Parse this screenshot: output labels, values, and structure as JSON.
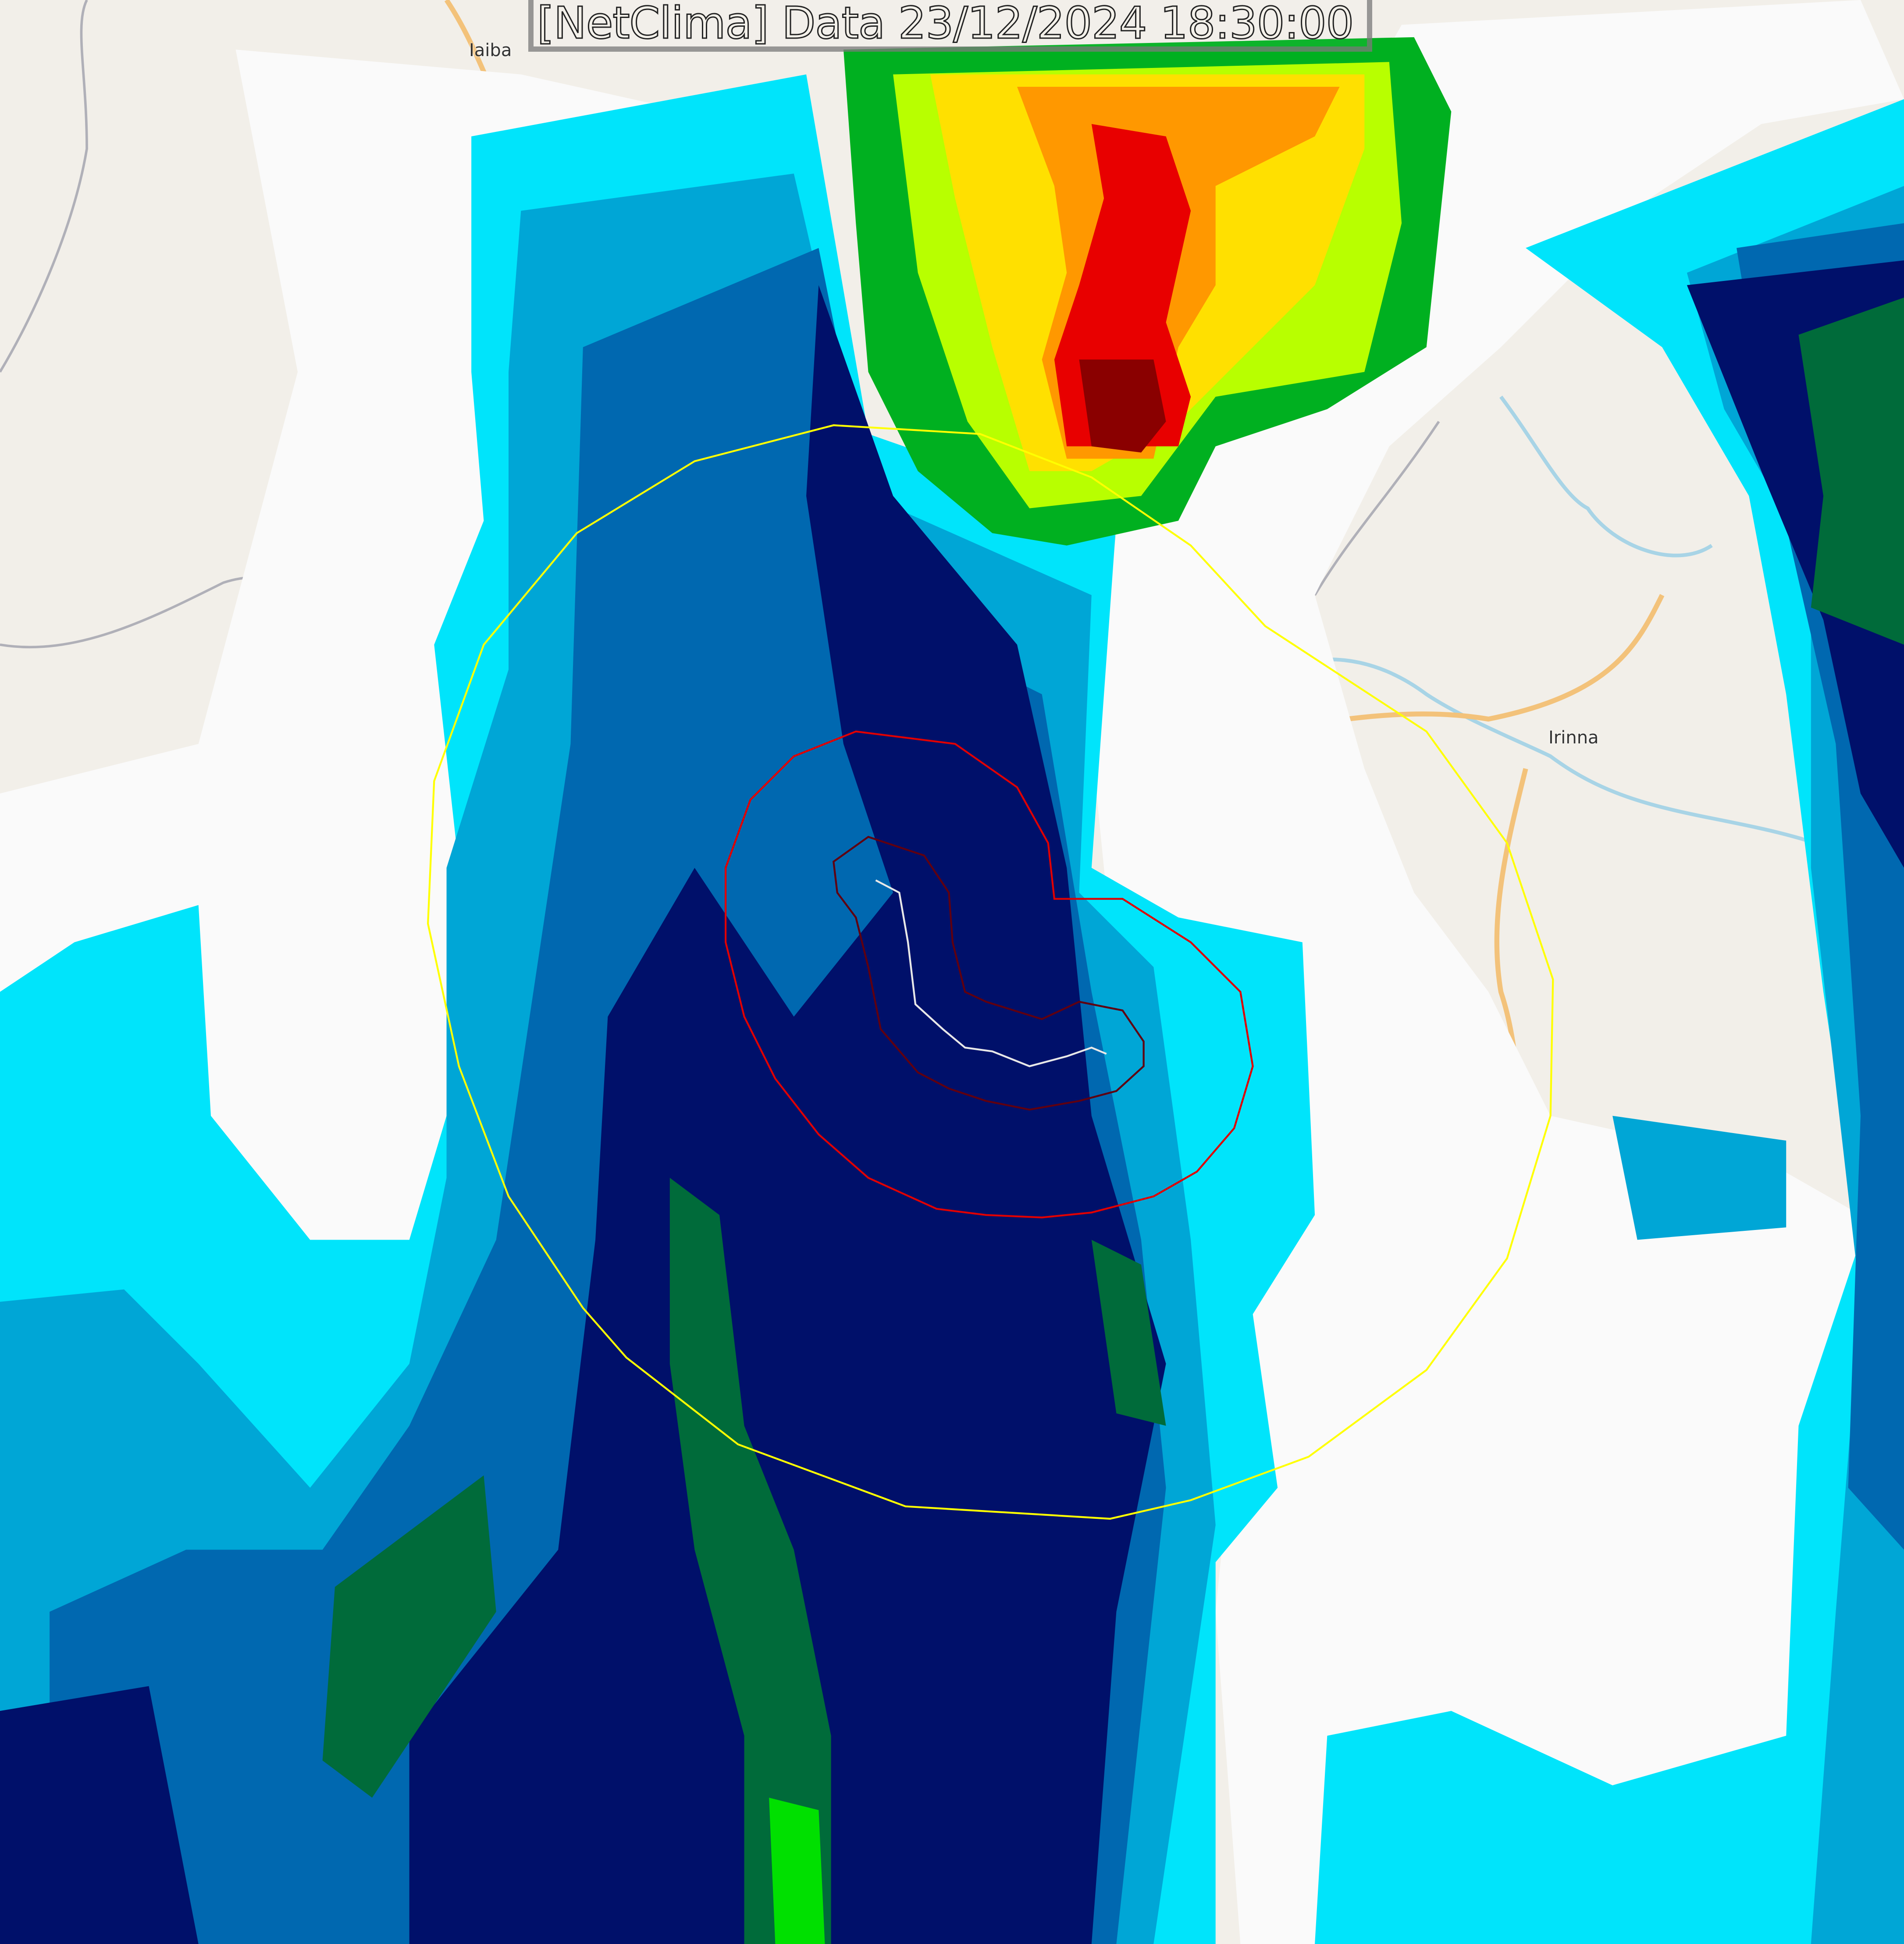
{
  "header": {
    "title": "[NetClima] Data 23/12/2024 18:30:00"
  },
  "places": [
    {
      "name": "Iaiba"
    },
    {
      "name": "Irinna"
    }
  ],
  "colors": {
    "basemap": "#f2efe9",
    "cloud": "#fafafa",
    "radar_cyan": "#00e8ff",
    "radar_light_blue": "#00a8d8",
    "radar_blue": "#0070b8",
    "radar_dark_blue": "#00106e",
    "radar_dark_green": "#006a3a",
    "radar_green": "#00d000",
    "radar_yellow": "#ffff00",
    "radar_orange": "#ff8800",
    "radar_red": "#e00000",
    "radar_dark_red": "#800000",
    "ring_outer": "#ffff00",
    "ring_middle": "#e00000",
    "ring_inner": "#600010",
    "track": "#e8e8e8"
  }
}
